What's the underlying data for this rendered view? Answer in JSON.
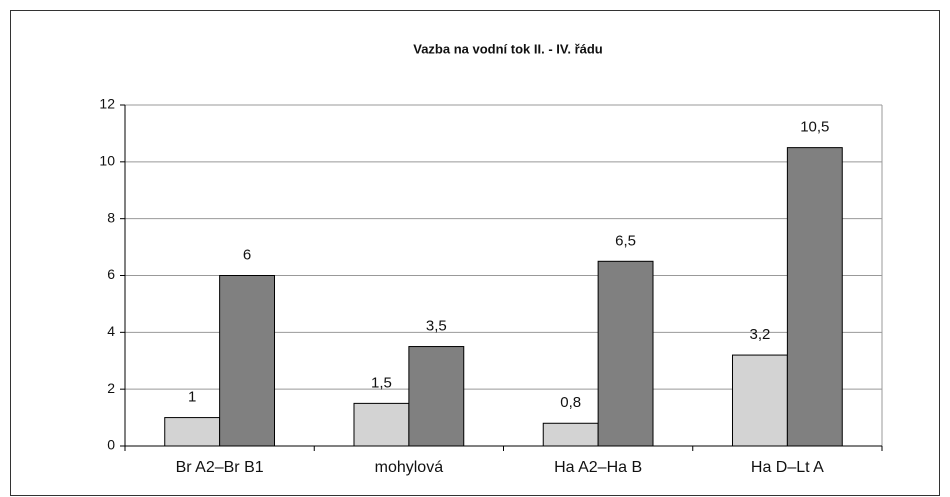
{
  "chart_data": {
    "type": "bar",
    "title": "Vazba na vodní tok II. - IV. řádu",
    "categories": [
      "Br A2–Br B1",
      "mohylová",
      "Ha A2–Ha B",
      "Ha D–Lt A"
    ],
    "series": [
      {
        "color": "#d3d3d3",
        "values": [
          1,
          1.5,
          0.8,
          3.2
        ],
        "value_labels": [
          "1",
          "1,5",
          "0,8",
          "3,2"
        ]
      },
      {
        "color": "#808080",
        "values": [
          6,
          3.5,
          6.5,
          10.5
        ],
        "value_labels": [
          "6",
          "3,5",
          "6,5",
          "10,5"
        ]
      }
    ],
    "ylim": [
      0,
      12
    ],
    "yticks": [
      0,
      2,
      4,
      6,
      8,
      10,
      12
    ],
    "grid": true
  }
}
